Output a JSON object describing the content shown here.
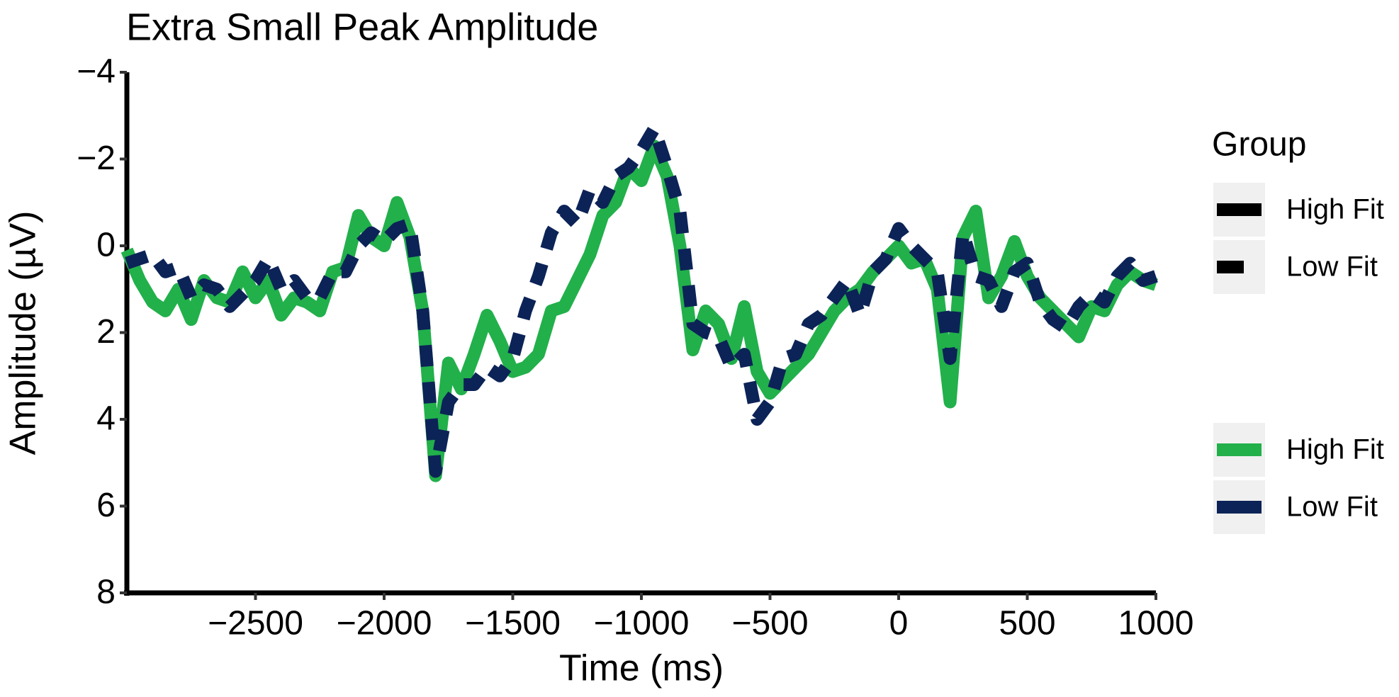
{
  "chart_data": {
    "type": "line",
    "title": "Extra Small Peak Amplitude",
    "x_label": "Time (ms)",
    "y_label": "Amplitude (µV)",
    "xlim": [
      -3000,
      1000
    ],
    "xticks": [
      {
        "value": -2500,
        "label": "−2500"
      },
      {
        "value": -2000,
        "label": "−2000"
      },
      {
        "value": -1500,
        "label": "−1500"
      },
      {
        "value": -1000,
        "label": "−1000"
      },
      {
        "value": -500,
        "label": "−500"
      },
      0,
      500,
      1000
    ],
    "ylim": [
      -4,
      8
    ],
    "y_reversed": true,
    "yticks": [
      {
        "value": -4,
        "label": "−4"
      },
      {
        "value": -2,
        "label": "−2"
      },
      0,
      2,
      4,
      6,
      8
    ],
    "legend_title": "Group",
    "legend_position": "right",
    "x": [
      -3000,
      -2950,
      -2900,
      -2850,
      -2800,
      -2750,
      -2700,
      -2650,
      -2600,
      -2550,
      -2500,
      -2450,
      -2400,
      -2350,
      -2300,
      -2250,
      -2200,
      -2150,
      -2100,
      -2050,
      -2000,
      -1950,
      -1900,
      -1850,
      -1800,
      -1750,
      -1700,
      -1650,
      -1600,
      -1550,
      -1500,
      -1450,
      -1400,
      -1350,
      -1300,
      -1250,
      -1200,
      -1150,
      -1100,
      -1050,
      -1000,
      -950,
      -900,
      -850,
      -800,
      -750,
      -700,
      -650,
      -600,
      -550,
      -500,
      -450,
      -400,
      -350,
      -300,
      -250,
      -200,
      -150,
      -100,
      -50,
      0,
      50,
      100,
      150,
      200,
      250,
      300,
      350,
      400,
      450,
      500,
      550,
      600,
      650,
      700,
      750,
      800,
      850,
      900,
      950,
      1000
    ],
    "series": [
      {
        "name": "High Fit",
        "color": "#22b04b",
        "linetype": "solid",
        "values": [
          0.1,
          0.8,
          1.3,
          1.5,
          1.0,
          1.7,
          0.8,
          1.2,
          1.3,
          0.6,
          1.2,
          0.8,
          1.6,
          1.2,
          1.3,
          1.5,
          0.6,
          0.5,
          -0.7,
          -0.2,
          0.0,
          -1.0,
          -0.2,
          1.5,
          5.3,
          2.7,
          3.3,
          2.5,
          1.6,
          2.2,
          2.9,
          2.8,
          2.5,
          1.5,
          1.4,
          0.8,
          0.2,
          -0.7,
          -1.0,
          -1.8,
          -1.5,
          -2.3,
          -1.6,
          0.0,
          2.4,
          1.5,
          1.8,
          2.6,
          1.4,
          2.9,
          3.4,
          3.1,
          2.8,
          2.5,
          2.0,
          1.5,
          1.2,
          1.0,
          0.6,
          0.3,
          0.0,
          0.4,
          0.3,
          1.0,
          3.6,
          -0.2,
          -0.8,
          1.2,
          0.7,
          -0.1,
          0.7,
          1.2,
          1.5,
          1.8,
          2.1,
          1.4,
          1.5,
          0.9,
          0.6,
          0.8,
          0.9
        ]
      },
      {
        "name": "Low Fit",
        "color": "#0c2357",
        "linetype": "dashed",
        "values": [
          0.4,
          0.3,
          0.2,
          0.6,
          0.5,
          1.2,
          0.9,
          1.0,
          1.4,
          1.1,
          0.8,
          0.3,
          1.0,
          0.8,
          1.2,
          1.2,
          0.6,
          0.6,
          0.0,
          -0.3,
          -0.1,
          -0.4,
          -0.5,
          1.5,
          5.2,
          3.6,
          3.2,
          3.2,
          2.8,
          3.0,
          2.6,
          1.5,
          0.7,
          -0.3,
          -0.8,
          -0.5,
          -1.3,
          -1.0,
          -1.6,
          -1.8,
          -2.2,
          -2.7,
          -1.8,
          -0.8,
          1.8,
          2.0,
          2.1,
          2.8,
          2.5,
          4.0,
          3.6,
          2.6,
          2.5,
          1.8,
          1.6,
          1.2,
          0.8,
          1.6,
          0.6,
          0.3,
          -0.4,
          0.0,
          0.3,
          0.6,
          2.6,
          -0.3,
          0.7,
          0.8,
          1.4,
          0.6,
          0.4,
          1.3,
          1.7,
          1.9,
          1.4,
          1.1,
          1.3,
          0.7,
          0.4,
          0.8,
          0.7
        ]
      }
    ]
  }
}
